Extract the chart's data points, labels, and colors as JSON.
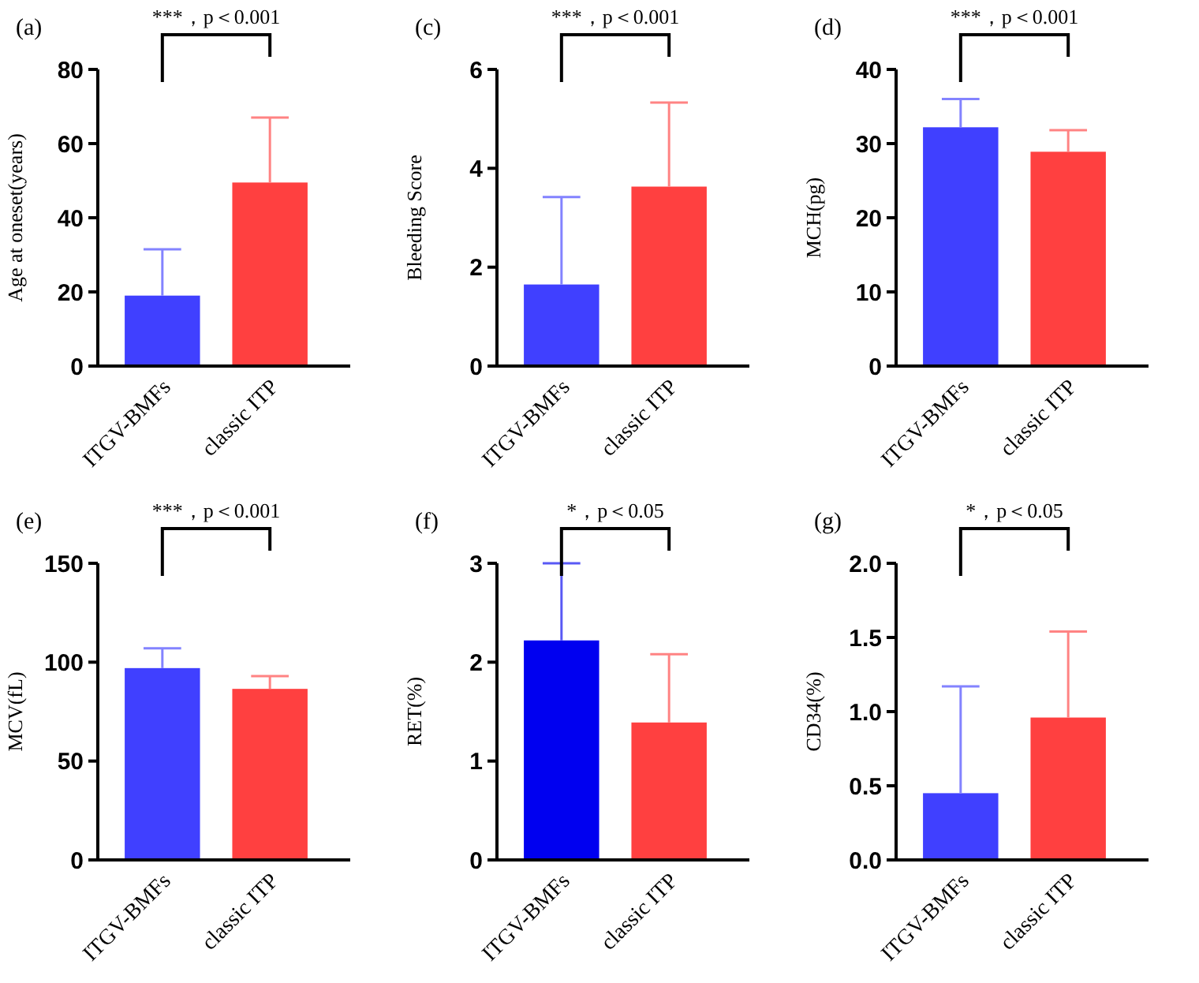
{
  "chart_data": [
    {
      "type": "bar",
      "title": "(a)",
      "ylabel": "Age at oneset(years)",
      "categories": [
        "ITGV-BMFs",
        "classic ITP"
      ],
      "values": [
        19,
        49.5
      ],
      "colors": [
        "#4040ff",
        "#ff4040"
      ],
      "errors": [
        [
          19,
          31.5
        ],
        [
          49.5,
          67
        ]
      ],
      "ylim": [
        0,
        80
      ],
      "yticks": [
        0,
        20,
        40,
        60,
        80
      ],
      "annotations": [
        "***，p＜0.001"
      ]
    },
    {
      "type": "bar",
      "title": "(c)",
      "ylabel": "Bleeding Score",
      "categories": [
        "ITGV-BMFs",
        "classic ITP"
      ],
      "values": [
        1.65,
        3.63
      ],
      "colors": [
        "#4040ff",
        "#ff4040"
      ],
      "errors": [
        [
          1.65,
          3.42
        ],
        [
          3.63,
          5.33
        ]
      ],
      "ylim": [
        0,
        6
      ],
      "yticks": [
        0,
        2,
        4,
        6
      ],
      "annotations": [
        "***，p＜0.001"
      ]
    },
    {
      "type": "bar",
      "title": "(d)",
      "ylabel": "MCH(pg)",
      "categories": [
        "ITGV-BMFs",
        "classic ITP"
      ],
      "values": [
        32.2,
        28.9
      ],
      "colors": [
        "#4040ff",
        "#ff4040"
      ],
      "errors": [
        [
          32.2,
          36
        ],
        [
          28.9,
          31.8
        ]
      ],
      "ylim": [
        0,
        40
      ],
      "yticks": [
        0,
        10,
        20,
        30,
        40
      ],
      "annotations": [
        "***，p＜0.001"
      ]
    },
    {
      "type": "bar",
      "title": "(e)",
      "ylabel": "MCV(fL)",
      "categories": [
        "ITGV-BMFs",
        "classic ITP"
      ],
      "values": [
        97,
        86.5
      ],
      "colors": [
        "#4040ff",
        "#ff4040"
      ],
      "errors": [
        [
          97,
          107
        ],
        [
          86.5,
          93
        ]
      ],
      "ylim": [
        0,
        150
      ],
      "yticks": [
        0,
        50,
        100,
        150
      ],
      "annotations": [
        "***，p＜0.001"
      ]
    },
    {
      "type": "bar",
      "title": "(f)",
      "ylabel": "RET(%)",
      "categories": [
        "ITGV-BMFs",
        "classic ITP"
      ],
      "values": [
        2.22,
        1.39
      ],
      "colors": [
        "#0000f0",
        "#ff4040"
      ],
      "errors": [
        [
          2.22,
          3.0
        ],
        [
          1.39,
          2.08
        ]
      ],
      "ylim": [
        0,
        3
      ],
      "yticks": [
        0,
        1,
        2,
        3
      ],
      "annotations": [
        "*，p＜0.05"
      ]
    },
    {
      "type": "bar",
      "title": "(g)",
      "ylabel": "CD34(%)",
      "categories": [
        "ITGV-BMFs",
        "classic ITP"
      ],
      "values": [
        0.45,
        0.96
      ],
      "colors": [
        "#4040ff",
        "#ff4040"
      ],
      "errors": [
        [
          0.45,
          1.17
        ],
        [
          0.96,
          1.54
        ]
      ],
      "ylim": [
        0,
        2
      ],
      "yticks": [
        {
          "value": 0,
          "label": "0.0"
        },
        {
          "value": 0.5,
          "label": "0.5"
        },
        {
          "value": 1,
          "label": "1.0"
        },
        {
          "value": 1.5,
          "label": "1.5"
        },
        {
          "value": 2,
          "label": "2.0"
        }
      ],
      "annotations": [
        "*，p＜0.05"
      ]
    }
  ]
}
